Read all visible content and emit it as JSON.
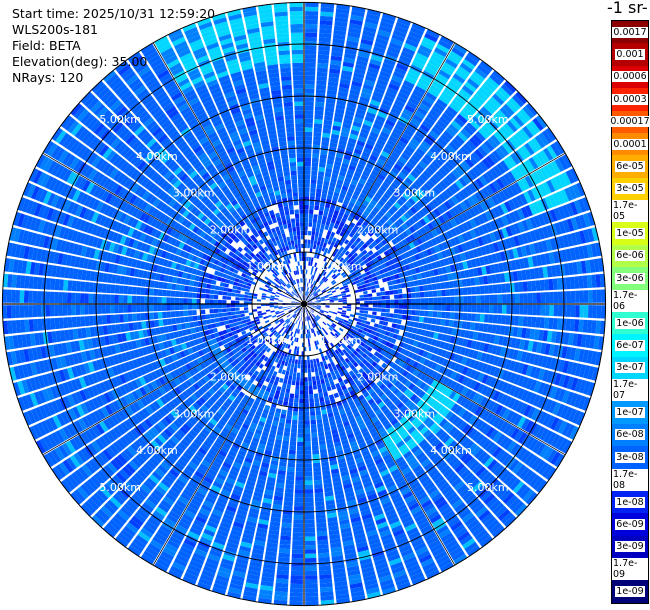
{
  "info": {
    "start_time": "Start time: 2025/10/31 12:59:20",
    "device": "WLS200s-181",
    "field": "Field: BETA",
    "elevation": "Elevation(deg): 35.00",
    "nrays": "NRays: 120"
  },
  "colorbar": {
    "unit_label": "-1 sr-",
    "levels": [
      "0.0017",
      "0.001",
      "0.0006",
      "0.0003",
      "0.00017",
      "0.0001",
      "6e-05",
      "3e-05",
      "1.7e-05",
      "1e-05",
      "6e-06",
      "3e-06",
      "1.7e-06",
      "1e-06",
      "6e-07",
      "3e-07",
      "1.7e-07",
      "1e-07",
      "6e-08",
      "3e-08",
      "1.7e-08",
      "1e-08",
      "6e-09",
      "3e-09",
      "1.7e-09",
      "1e-09"
    ],
    "colors": [
      "#8b0000",
      "#b40000",
      "#dd0000",
      "#ff2200",
      "#ff5a00",
      "#ff8c00",
      "#ffae00",
      "#ffd000",
      "#f2f000",
      "#d8ff18",
      "#b2ff4a",
      "#84ff7c",
      "#5affa6",
      "#30ffd2",
      "#00f4ff",
      "#00d6ff",
      "#00bfff",
      "#0099ff",
      "#0080ff",
      "#0062ff",
      "#0040ff",
      "#0022f2",
      "#0000dd",
      "#0000c0",
      "#00009c",
      "#000078"
    ]
  },
  "chart_data": {
    "type": "ppi",
    "field": "BETA",
    "elevation_deg": 35.0,
    "nrays": 120,
    "range_rings_km": [
      1,
      2,
      3,
      4,
      5
    ],
    "ring_labels": [
      "1.00km",
      "2.00km",
      "3.00km",
      "4.00km",
      "5.00km"
    ],
    "max_range_km": 5.8,
    "spokes_deg": [
      0,
      30,
      60,
      90,
      120,
      150,
      180,
      210,
      240,
      270,
      300,
      330
    ],
    "grid": true,
    "dominant_beta": "3e-08",
    "highlights": [
      {
        "azimuth_from_deg": 330,
        "azimuth_to_deg": 360,
        "range_from_km": 4.6,
        "range_to_km": 5.8,
        "beta": "3e-07"
      },
      {
        "azimuth_from_deg": 25,
        "azimuth_to_deg": 70,
        "range_from_km": 4.7,
        "range_to_km": 5.6,
        "beta": "3e-07"
      },
      {
        "azimuth_from_deg": 120,
        "azimuth_to_deg": 150,
        "range_from_km": 2.9,
        "range_to_km": 3.5,
        "beta": "3e-07"
      },
      {
        "azimuth_from_deg": 200,
        "azimuth_to_deg": 250,
        "range_from_km": 1.8,
        "range_to_km": 2.0,
        "beta": "6e-08"
      }
    ]
  }
}
